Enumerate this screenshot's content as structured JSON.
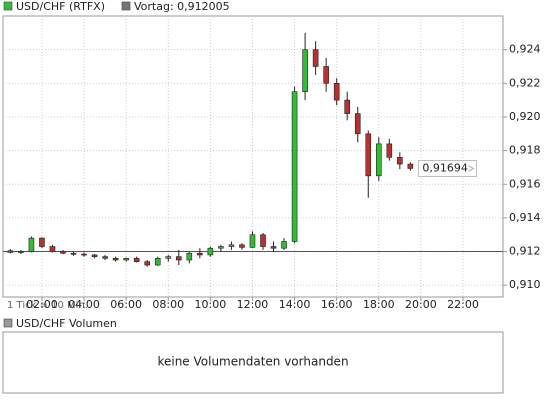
{
  "chart_data": {
    "type": "candlestick",
    "legend": [
      {
        "name": "USD/CHF (RTFX)",
        "color": "#33bb33"
      },
      {
        "name": "Vortag: 0,912005",
        "color": "#777777"
      }
    ],
    "reference": {
      "value": 0.912005,
      "color": "#555555"
    },
    "annotation": "1 Tick = 10 Min.",
    "last": {
      "value": 0.91694,
      "label": "0,91694"
    },
    "up_color": "#33bb33",
    "down_color": "#b83030",
    "x": [
      0.5,
      1,
      1.5,
      2,
      2.5,
      3,
      3.5,
      4,
      4.5,
      5,
      5.5,
      6,
      6.5,
      7,
      7.5,
      8,
      8.5,
      9,
      9.5,
      10,
      10.5,
      11,
      11.5,
      12,
      12.5,
      13,
      13.5,
      14,
      14.5,
      15,
      15.5,
      16,
      16.5,
      17,
      17.5,
      18,
      18.5,
      19,
      19.5
    ],
    "open": [
      0.91205,
      0.91195,
      0.912,
      0.9128,
      0.9123,
      0.912,
      0.9119,
      0.91185,
      0.9118,
      0.9117,
      0.9116,
      0.9115,
      0.9116,
      0.9114,
      0.9112,
      0.9116,
      0.9117,
      0.9115,
      0.9119,
      0.9118,
      0.9122,
      0.9123,
      0.9124,
      0.91225,
      0.913,
      0.9123,
      0.9122,
      0.9126,
      0.9215,
      0.924,
      0.923,
      0.922,
      0.921,
      0.9202,
      0.919,
      0.9165,
      0.9184,
      0.9176,
      0.9172
    ],
    "high": [
      0.91215,
      0.9121,
      0.9129,
      0.91285,
      0.9124,
      0.9121,
      0.912,
      0.91195,
      0.91185,
      0.9118,
      0.9117,
      0.91165,
      0.9117,
      0.9115,
      0.9117,
      0.9118,
      0.9121,
      0.912,
      0.9122,
      0.9123,
      0.9124,
      0.9126,
      0.9125,
      0.9132,
      0.9131,
      0.9126,
      0.9128,
      0.9218,
      0.925,
      0.9245,
      0.9235,
      0.9223,
      0.9215,
      0.9206,
      0.9192,
      0.9188,
      0.9187,
      0.9179,
      0.9173
    ],
    "low": [
      0.9119,
      0.91185,
      0.91195,
      0.9122,
      0.91195,
      0.91185,
      0.91175,
      0.9117,
      0.9116,
      0.9115,
      0.9114,
      0.9114,
      0.91135,
      0.9111,
      0.91115,
      0.9114,
      0.9112,
      0.9113,
      0.9116,
      0.9117,
      0.912,
      0.9121,
      0.9121,
      0.9122,
      0.9121,
      0.912,
      0.9121,
      0.9125,
      0.921,
      0.9225,
      0.9215,
      0.9207,
      0.9198,
      0.9185,
      0.9152,
      0.9162,
      0.9174,
      0.9169,
      0.9168
    ],
    "close": [
      0.91195,
      0.912,
      0.9128,
      0.9123,
      0.912,
      0.9119,
      0.91185,
      0.9118,
      0.9117,
      0.9116,
      0.9115,
      0.9116,
      0.9114,
      0.9112,
      0.9116,
      0.9117,
      0.9115,
      0.9119,
      0.9118,
      0.9122,
      0.9123,
      0.9124,
      0.91225,
      0.913,
      0.9123,
      0.9122,
      0.9126,
      0.9215,
      0.924,
      0.923,
      0.922,
      0.921,
      0.9202,
      0.919,
      0.9165,
      0.9184,
      0.9176,
      0.9172,
      0.91694
    ],
    "xlim": [
      0.15,
      23.9
    ],
    "xticks": [
      {
        "value": 2,
        "label": "02:00"
      },
      {
        "value": 4,
        "label": "04:00"
      },
      {
        "value": 6,
        "label": "06:00"
      },
      {
        "value": 8,
        "label": "08:00"
      },
      {
        "value": 10,
        "label": "10:00"
      },
      {
        "value": 12,
        "label": "12:00"
      },
      {
        "value": 14,
        "label": "14:00"
      },
      {
        "value": 16,
        "label": "16:00"
      },
      {
        "value": 18,
        "label": "18:00"
      },
      {
        "value": 20,
        "label": "20:00"
      },
      {
        "value": 22,
        "label": "22:00"
      }
    ],
    "ylim": [
      0.9093,
      0.926
    ],
    "yticks": [
      {
        "value": 0.91,
        "label": "0,910"
      },
      {
        "value": 0.912,
        "label": "0,912"
      },
      {
        "value": 0.914,
        "label": "0,914"
      },
      {
        "value": 0.916,
        "label": "0,916"
      },
      {
        "value": 0.918,
        "label": "0,918"
      },
      {
        "value": 0.92,
        "label": "0,920"
      },
      {
        "value": 0.922,
        "label": "0,922"
      },
      {
        "value": 0.924,
        "label": "0,924"
      }
    ],
    "grid": true
  },
  "volume_panel": {
    "legend": {
      "name": "USD/CHF Volumen",
      "color": "#999999"
    },
    "message": "keine Volumendaten vorhanden"
  }
}
